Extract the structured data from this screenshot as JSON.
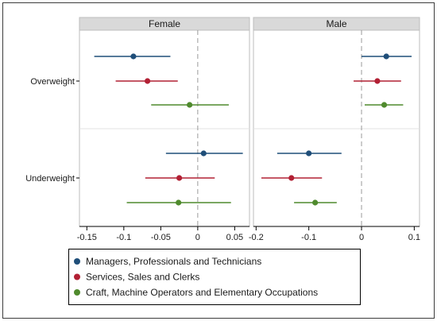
{
  "chart_data": {
    "type": "forest",
    "panels": [
      {
        "title": "Female",
        "xlim": [
          -0.16,
          0.07
        ],
        "xticks": [
          -0.15,
          -0.1,
          -0.05,
          0,
          0.05
        ],
        "xtick_labels": [
          "-0.15",
          "-0.1",
          "-0.05",
          "0",
          "0.05"
        ],
        "groups": [
          {
            "label": "Overweight",
            "points": [
              {
                "series": 0,
                "estimate": -0.087,
                "lower": -0.14,
                "upper": -0.037
              },
              {
                "series": 1,
                "estimate": -0.068,
                "lower": -0.111,
                "upper": -0.027
              },
              {
                "series": 2,
                "estimate": -0.011,
                "lower": -0.063,
                "upper": 0.042
              }
            ]
          },
          {
            "label": "Underweight",
            "points": [
              {
                "series": 0,
                "estimate": 0.008,
                "lower": -0.043,
                "upper": 0.061
              },
              {
                "series": 1,
                "estimate": -0.025,
                "lower": -0.071,
                "upper": 0.023
              },
              {
                "series": 2,
                "estimate": -0.026,
                "lower": -0.096,
                "upper": 0.045
              }
            ]
          }
        ]
      },
      {
        "title": "Male",
        "xlim": [
          -0.205,
          0.11
        ],
        "xticks": [
          -0.2,
          -0.1,
          0,
          0.1
        ],
        "xtick_labels": [
          "-0.2",
          "-0.1",
          "0",
          "0.1"
        ],
        "groups": [
          {
            "label": "Overweight",
            "points": [
              {
                "series": 0,
                "estimate": 0.047,
                "lower": 0.0,
                "upper": 0.095
              },
              {
                "series": 1,
                "estimate": 0.03,
                "lower": -0.015,
                "upper": 0.075
              },
              {
                "series": 2,
                "estimate": 0.043,
                "lower": 0.006,
                "upper": 0.079
              }
            ]
          },
          {
            "label": "Underweight",
            "points": [
              {
                "series": 0,
                "estimate": -0.1,
                "lower": -0.16,
                "upper": -0.038
              },
              {
                "series": 1,
                "estimate": -0.133,
                "lower": -0.19,
                "upper": -0.075
              },
              {
                "series": 2,
                "estimate": -0.088,
                "lower": -0.128,
                "upper": -0.047
              }
            ]
          }
        ]
      }
    ],
    "series": [
      {
        "name": "Managers, Professionals and Technicians",
        "color": "#1f4e79"
      },
      {
        "name": "Services, Sales and Clerks",
        "color": "#b22034"
      },
      {
        "name": "Craft, Machine Operators and Elementary Occupations",
        "color": "#4f8a2d"
      }
    ],
    "reference_line": 0,
    "legend_position": "bottom",
    "grid": false
  }
}
